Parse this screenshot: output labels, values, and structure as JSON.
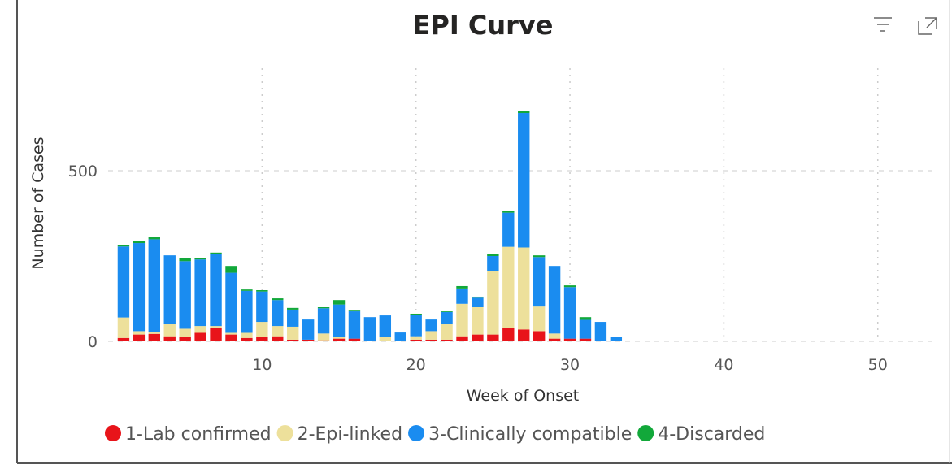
{
  "chart_data": {
    "type": "bar",
    "stacked": true,
    "title": "EPI Curve",
    "xlabel": "Week of Onset",
    "ylabel": "Number of Cases",
    "x": [
      1,
      2,
      3,
      4,
      5,
      6,
      7,
      8,
      9,
      10,
      11,
      12,
      13,
      14,
      15,
      16,
      17,
      18,
      19,
      20,
      21,
      22,
      23,
      24,
      25,
      26,
      27,
      28,
      29,
      30,
      31,
      32,
      33
    ],
    "series": [
      {
        "name": "1-Lab confirmed",
        "color": "#e8141a",
        "values": [
          10,
          20,
          22,
          15,
          12,
          25,
          40,
          20,
          10,
          12,
          15,
          5,
          5,
          3,
          8,
          8,
          2,
          2,
          0,
          5,
          5,
          5,
          15,
          20,
          20,
          40,
          35,
          30,
          8,
          8,
          8,
          0,
          0
        ]
      },
      {
        "name": "2-Epi-linked",
        "color": "#ede09b",
        "values": [
          60,
          10,
          5,
          35,
          25,
          20,
          5,
          5,
          15,
          45,
          30,
          38,
          0,
          20,
          5,
          0,
          0,
          10,
          0,
          10,
          25,
          45,
          95,
          80,
          185,
          237,
          240,
          72,
          15,
          0,
          0,
          0,
          0
        ]
      },
      {
        "name": "3-Clinically compatible",
        "color": "#1a8cf0",
        "values": [
          208,
          258,
          272,
          202,
          198,
          195,
          210,
          176,
          123,
          89,
          76,
          50,
          59,
          74,
          95,
          80,
          69,
          64,
          26,
          63,
          34,
          36,
          45,
          28,
          45,
          100,
          394,
          145,
          198,
          151,
          55,
          57,
          12
        ]
      },
      {
        "name": "4-Discarded",
        "color": "#12a83a",
        "values": [
          5,
          5,
          8,
          0,
          8,
          3,
          5,
          20,
          4,
          4,
          5,
          5,
          0,
          3,
          13,
          2,
          0,
          0,
          0,
          3,
          0,
          2,
          7,
          3,
          5,
          6,
          5,
          5,
          0,
          5,
          8,
          0,
          0
        ]
      }
    ],
    "xlim": [
      0,
      53.5
    ],
    "xticks": [
      10,
      20,
      30,
      40,
      50
    ],
    "ylim": [
      0,
      800
    ],
    "yticks": [
      0,
      500
    ],
    "grid": true,
    "legend": "bottom"
  }
}
